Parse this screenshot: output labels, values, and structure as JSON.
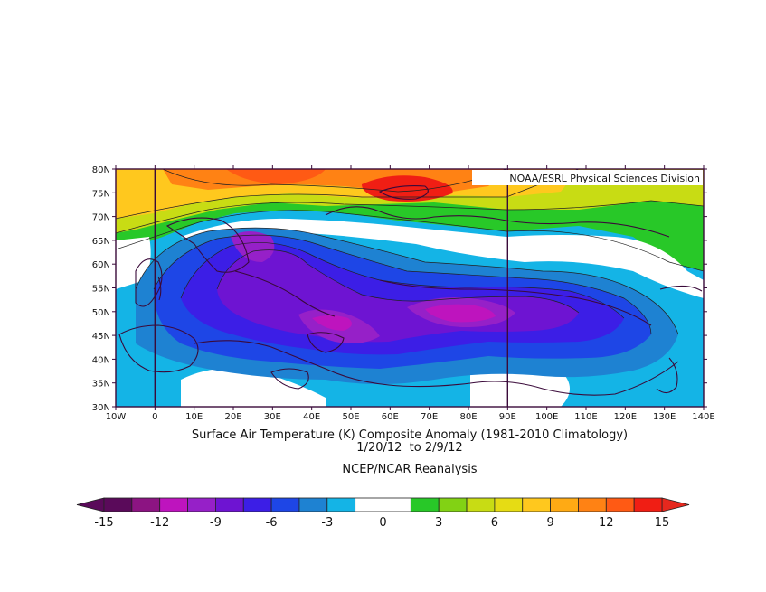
{
  "map": {
    "credit": "NOAA/ESRL Physical Sciences Division",
    "lat_labels": [
      "30N",
      "35N",
      "40N",
      "45N",
      "50N",
      "55N",
      "60N",
      "65N",
      "70N",
      "75N",
      "80N"
    ],
    "lon_labels": [
      "10W",
      "0",
      "10E",
      "20E",
      "30E",
      "40E",
      "50E",
      "60E",
      "70E",
      "80E",
      "90E",
      "100E",
      "110E",
      "120E",
      "130E",
      "140E"
    ],
    "lat_range": [
      30,
      80
    ],
    "lon_range": [
      -10,
      140
    ],
    "meridian_lines": [
      0,
      90
    ]
  },
  "caption": {
    "line1": "Surface Air Temperature (K) Composite Anomaly (1981-2010 Climatology)",
    "line2": "1/20/12  to 2/9/12",
    "line3": "NCEP/NCAR Reanalysis"
  },
  "colorbar": {
    "labels": [
      "-15",
      "-12",
      "-9",
      "-6",
      "-3",
      "0",
      "3",
      "6",
      "9",
      "12",
      "15"
    ],
    "colors": [
      "#5a0a5a",
      "#8c1482",
      "#be14be",
      "#9620c8",
      "#6e14d2",
      "#3c1ee6",
      "#1e46e6",
      "#1e82d2",
      "#14b4e6",
      "#ffffff",
      "#ffffff",
      "#28c828",
      "#82d214",
      "#c8dc14",
      "#e6dc14",
      "#ffc81e",
      "#ffaa14",
      "#ff8214",
      "#ff5a14",
      "#f01e14"
    ],
    "min": -15,
    "max": 15
  }
}
